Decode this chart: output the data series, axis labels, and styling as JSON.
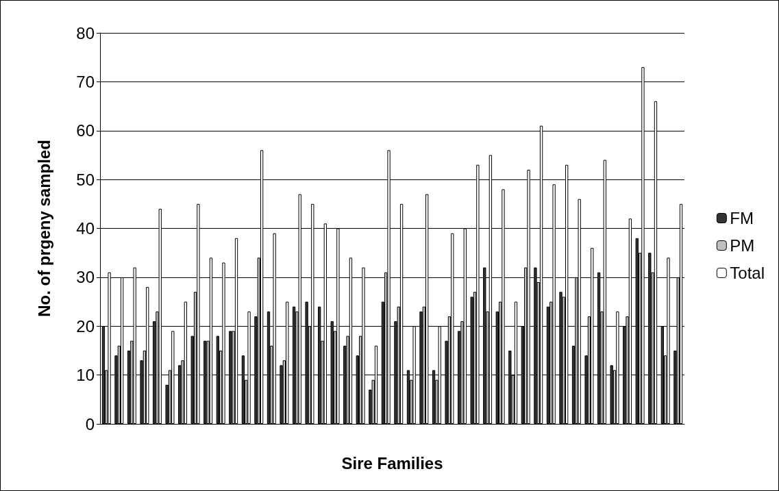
{
  "chart_data": {
    "type": "bar",
    "xlabel": "Sire Families",
    "ylabel": "No. of prgeny sampled",
    "categories": [
      null,
      null,
      null,
      null,
      null,
      null,
      null,
      null,
      null,
      null,
      null,
      null,
      null,
      null,
      null,
      null,
      null,
      null,
      null,
      null,
      null,
      null,
      null,
      null,
      null,
      null,
      null,
      null,
      null,
      null,
      null,
      null,
      null,
      null,
      null,
      null,
      null,
      null,
      null,
      null,
      null,
      null,
      null,
      null,
      null,
      null
    ],
    "series": [
      {
        "name": "FM",
        "color": "#333333",
        "values": [
          20,
          14,
          15,
          13,
          21,
          8,
          12,
          18,
          17,
          18,
          19,
          14,
          22,
          23,
          12,
          24,
          25,
          24,
          21,
          16,
          14,
          7,
          25,
          21,
          11,
          23,
          11,
          17,
          19,
          26,
          32,
          23,
          15,
          20,
          32,
          24,
          27,
          16,
          14,
          31,
          12,
          20,
          38,
          35,
          20,
          15
        ]
      },
      {
        "name": "PM",
        "color": "#c0c0c0",
        "values": [
          11,
          16,
          17,
          15,
          23,
          11,
          13,
          27,
          17,
          15,
          19,
          9,
          34,
          16,
          13,
          23,
          20,
          17,
          19,
          18,
          18,
          9,
          31,
          24,
          9,
          24,
          9,
          22,
          21,
          27,
          23,
          25,
          10,
          32,
          29,
          25,
          26,
          30,
          22,
          23,
          11,
          22,
          35,
          31,
          14,
          30
        ]
      },
      {
        "name": "Total",
        "color": "#ffffff",
        "values": [
          31,
          30,
          32,
          28,
          44,
          19,
          25,
          45,
          34,
          33,
          38,
          23,
          56,
          39,
          25,
          47,
          45,
          41,
          40,
          34,
          32,
          16,
          56,
          45,
          20,
          47,
          20,
          39,
          40,
          53,
          55,
          48,
          25,
          52,
          61,
          49,
          53,
          46,
          36,
          54,
          23,
          42,
          73,
          66,
          34,
          45
        ]
      }
    ],
    "ylim": [
      0,
      80
    ],
    "yticks": [
      0,
      10,
      20,
      30,
      40,
      50,
      60,
      70,
      80
    ],
    "grid": "y",
    "legend": "right"
  }
}
